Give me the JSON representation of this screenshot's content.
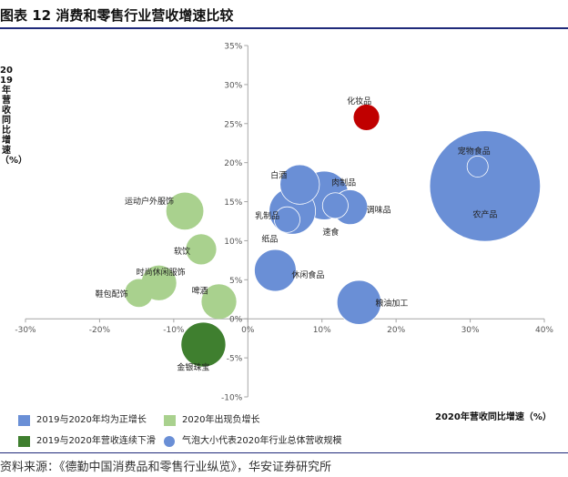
{
  "title": "图表 12 消费和零售行业营收增速比较",
  "source": "资料来源：《德勤中国消费品和零售行业纵览》，华安证券研究所",
  "colors": {
    "both_positive": "#4472c4",
    "negative_2020": "#a9d18e",
    "continuous_decline": "#3f7f2f",
    "highlight": "#c00000"
  },
  "chart_data": {
    "type": "scatter",
    "title": "图表 12 消费和零售行业营收增速比较",
    "xlabel": "2020年营收同比增速（%）",
    "ylabel": "2019年营收同比增速（%）",
    "xlim": [
      -30,
      40
    ],
    "ylim": [
      -10,
      35
    ],
    "x_ticks": [
      "-30%",
      "-20%",
      "-10%",
      "0%",
      "10%",
      "20%",
      "30%",
      "40%"
    ],
    "y_ticks": [
      "-10%",
      "-5%",
      "0%",
      "5%",
      "10%",
      "15%",
      "20%",
      "25%",
      "30%",
      "35%"
    ],
    "grid": false,
    "legend_position": "bottom",
    "legend": [
      {
        "label": "2019与2020年均为正增长",
        "color": "#6a8fd6",
        "shape": "square"
      },
      {
        "label": "2020年出现负增长",
        "color": "#a9d18e",
        "shape": "square"
      },
      {
        "label": "2019与2020年营收连续下滑",
        "color": "#3f7f2f",
        "shape": "square"
      },
      {
        "label": "气泡大小代表2020年行业总体营收规模",
        "color": "#6a8fd6",
        "shape": "circle"
      }
    ],
    "points": [
      {
        "label": "农产品",
        "x": 32,
        "y": 17,
        "size": 45,
        "color": "#6a8fd6"
      },
      {
        "label": "宠物食品",
        "x": 31,
        "y": 19.5,
        "size": 6,
        "color": "#6a8fd6"
      },
      {
        "label": "化妆品",
        "x": 16,
        "y": 25.8,
        "size": 8,
        "color": "#c00000"
      },
      {
        "label": "白酒",
        "x": 7,
        "y": 17.2,
        "size": 14,
        "color": "#6a8fd6"
      },
      {
        "label": "肉制品",
        "x": 10.3,
        "y": 15.8,
        "size": 18,
        "color": "#6a8fd6"
      },
      {
        "label": "调味品",
        "x": 13.8,
        "y": 14.3,
        "size": 12,
        "color": "#6a8fd6"
      },
      {
        "label": "速食",
        "x": 11.8,
        "y": 14.5,
        "size": 8,
        "color": "#6a8fd6"
      },
      {
        "label": "乳制品",
        "x": 6,
        "y": 13.8,
        "size": 17,
        "color": "#6a8fd6"
      },
      {
        "label": "纸品",
        "x": 5.3,
        "y": 12.7,
        "size": 8,
        "color": "#6a8fd6"
      },
      {
        "label": "休闲食品",
        "x": 3.7,
        "y": 6.2,
        "size": 15,
        "color": "#6a8fd6"
      },
      {
        "label": "粮油加工",
        "x": 15,
        "y": 2.1,
        "size": 16,
        "color": "#6a8fd6"
      },
      {
        "label": "运动户外服饰",
        "x": -8.5,
        "y": 13.8,
        "size": 13,
        "color": "#a9d18e"
      },
      {
        "label": "软饮",
        "x": -6.3,
        "y": 8.9,
        "size": 10,
        "color": "#a9d18e"
      },
      {
        "label": "时尚休闲服饰",
        "x": -12,
        "y": 4.6,
        "size": 12,
        "color": "#a9d18e"
      },
      {
        "label": "鞋包配饰",
        "x": -14.7,
        "y": 3.3,
        "size": 9,
        "color": "#a9d18e"
      },
      {
        "label": "啤酒",
        "x": -3.9,
        "y": 2.2,
        "size": 12,
        "color": "#a9d18e"
      },
      {
        "label": "金银珠宝",
        "x": -6,
        "y": -3.3,
        "size": 16,
        "color": "#3f7f2f"
      }
    ]
  }
}
